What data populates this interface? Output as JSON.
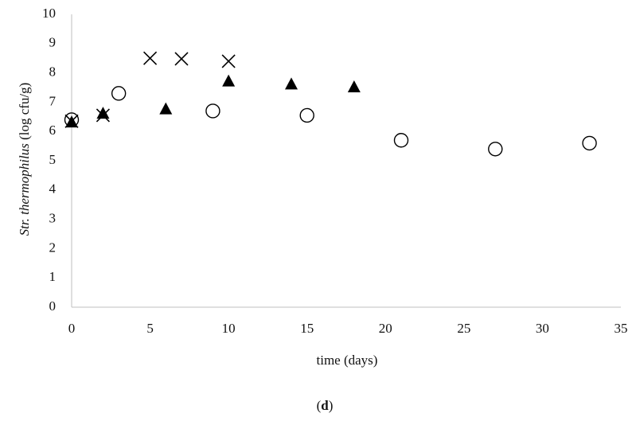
{
  "chart_data": {
    "type": "scatter",
    "xlabel": "time (days)",
    "ylabel_italic": "Str. thermophilus",
    "ylabel": "(log cfu/g)",
    "caption": {
      "open": "(",
      "letter": "d",
      "close": ")"
    },
    "xlim": [
      0,
      35
    ],
    "xticks": [
      0,
      5,
      10,
      15,
      20,
      25,
      30,
      35
    ],
    "ylim": [
      0,
      10
    ],
    "yticks": [
      0,
      1,
      2,
      3,
      4,
      5,
      6,
      7,
      8,
      9,
      10
    ],
    "grid": false,
    "series": [
      {
        "marker": "circle",
        "color": "#000000",
        "x": [
          0,
          3,
          9,
          15,
          21,
          27,
          33
        ],
        "values": [
          6.4,
          7.3,
          6.7,
          6.55,
          5.7,
          5.4,
          5.6
        ]
      },
      {
        "marker": "cross",
        "color": "#000000",
        "x": [
          0,
          2,
          5,
          7,
          10
        ],
        "values": [
          6.35,
          6.55,
          8.5,
          8.48,
          8.4
        ]
      },
      {
        "marker": "triangle",
        "color": "#000000",
        "x": [
          0,
          2,
          6,
          10,
          14,
          18
        ],
        "values": [
          6.3,
          6.6,
          6.75,
          7.7,
          7.6,
          7.5
        ]
      }
    ]
  }
}
